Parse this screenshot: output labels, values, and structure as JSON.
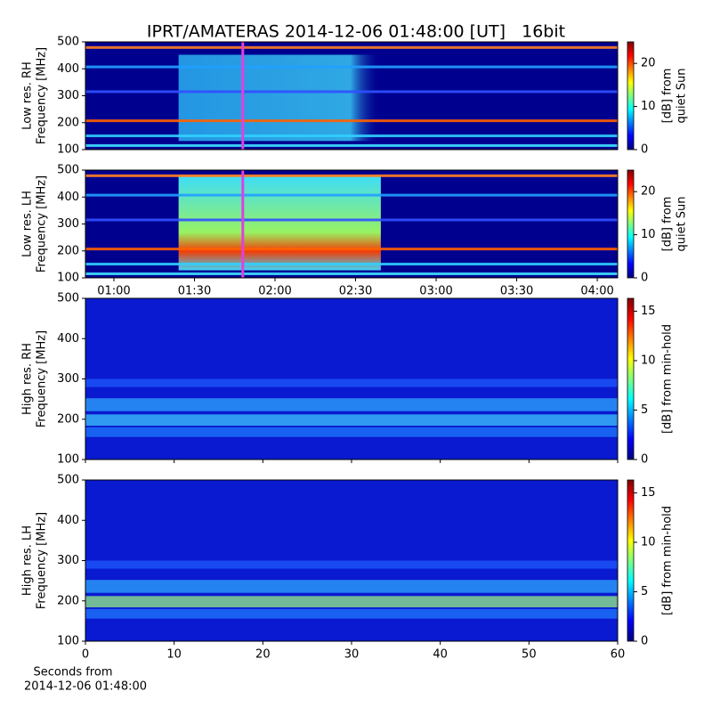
{
  "chart_data": [
    {
      "type": "heatmap",
      "title": "IPRT/AMATERAS 2014-12-06 01:48:00 [UT]   16bit",
      "ylabel": [
        "Low res. RH",
        "Frequency [MHz]"
      ],
      "ylim": [
        100,
        500
      ],
      "yticks": [
        100,
        200,
        300,
        400,
        500
      ],
      "xlim": [
        49.4,
        247.6
      ],
      "marker_x": 108,
      "marker_color": "#e040e0",
      "colorbar": {
        "label": [
          "[dB] from",
          "quiet Sun"
        ],
        "clim": [
          0,
          25
        ],
        "ticks": [
          0,
          10,
          20
        ]
      }
    },
    {
      "type": "heatmap",
      "ylabel": [
        "Low res. LH",
        "Frequency [MHz]"
      ],
      "ylim": [
        100,
        500
      ],
      "yticks": [
        100,
        200,
        300,
        400,
        500
      ],
      "xlim": [
        49.4,
        247.6
      ],
      "xticks": [
        {
          "value": 60,
          "label": "01:00"
        },
        {
          "value": 90,
          "label": "01:30"
        },
        {
          "value": 120,
          "label": "02:00"
        },
        {
          "value": 150,
          "label": "02:30"
        },
        {
          "value": 180,
          "label": "03:00"
        },
        {
          "value": 210,
          "label": "03:30"
        },
        {
          "value": 240,
          "label": "04:00"
        }
      ],
      "marker_x": 108,
      "marker_color": "#e040e0",
      "colorbar": {
        "label": [
          "[dB] from",
          "quiet Sun"
        ],
        "clim": [
          0,
          25
        ],
        "ticks": [
          0,
          10,
          20
        ]
      }
    },
    {
      "type": "heatmap",
      "ylabel": [
        "High res. RH",
        "Frequency [MHz]"
      ],
      "ylim": [
        100,
        500
      ],
      "yticks": [
        100,
        200,
        300,
        400,
        500
      ],
      "xlim": [
        0,
        60
      ],
      "xticks": [
        0,
        10,
        20,
        30,
        40,
        50,
        60
      ],
      "show_xticklabels": false,
      "colorbar": {
        "label": [
          "[dB] from min-hold"
        ],
        "clim": [
          0,
          16.3
        ],
        "ticks": [
          0,
          5,
          10,
          15
        ]
      }
    },
    {
      "type": "heatmap",
      "ylabel": [
        "High res. LH",
        "Frequency [MHz]"
      ],
      "ylim": [
        100,
        500
      ],
      "yticks": [
        100,
        200,
        300,
        400,
        500
      ],
      "xlim": [
        0,
        60
      ],
      "xticks": [
        0,
        10,
        20,
        30,
        40,
        50,
        60
      ],
      "show_xticklabels": true,
      "xlabel": [
        "Seconds from",
        "2014-12-06 01:48:00"
      ],
      "colorbar": {
        "label": [
          "[dB] from min-hold"
        ],
        "clim": [
          0,
          16.3
        ],
        "ticks": [
          0,
          5,
          10,
          15
        ]
      }
    }
  ]
}
